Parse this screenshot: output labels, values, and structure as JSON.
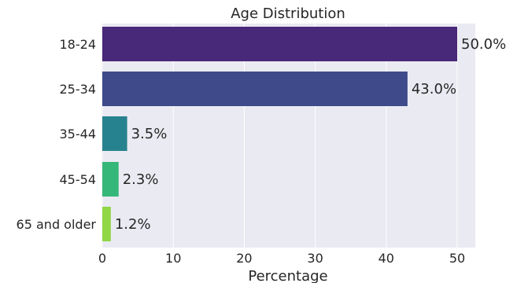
{
  "chart_data": {
    "type": "bar",
    "orientation": "horizontal",
    "title": "Age Distribution",
    "xlabel": "Percentage",
    "ylabel": "",
    "categories": [
      "18-24",
      "25-34",
      "35-44",
      "45-54",
      "65 and older"
    ],
    "values": [
      50.0,
      43.0,
      3.5,
      2.3,
      1.2
    ],
    "value_labels": [
      "50.0%",
      "43.0%",
      "3.5%",
      "2.3%",
      "1.2%"
    ],
    "xlim": [
      0,
      52.5
    ],
    "xticks": [
      0,
      10,
      20,
      30,
      40,
      50
    ],
    "grid": true,
    "colors": [
      "#482878",
      "#3e4a89",
      "#26828e",
      "#35b779",
      "#8fd744"
    ],
    "plot_background": "#eaeaf2"
  }
}
